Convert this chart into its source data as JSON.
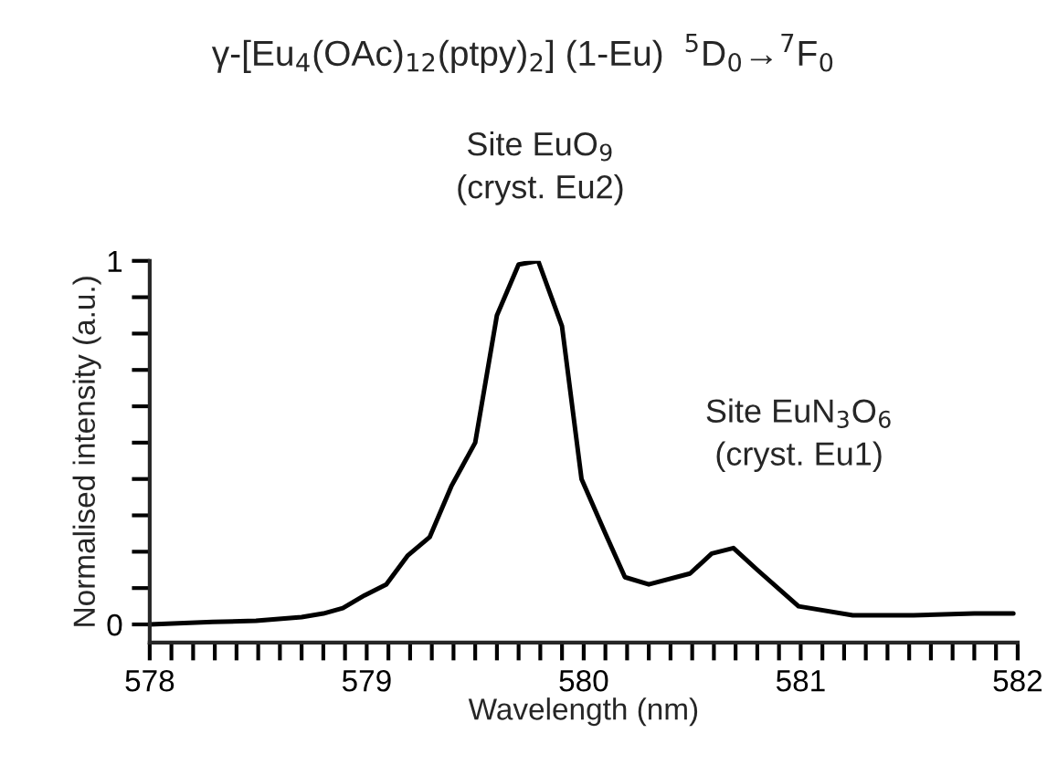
{
  "chart_data": {
    "type": "line",
    "title": "γ-[Eu$_{4}$(OAc)$_{12}$(ptpy)$_{2}$] (1-Eu)  $^{5}$D$_{0}$→$^{7}$F$_{0}$",
    "xlabel": "Wavelength (nm)",
    "ylabel": "Normalised intensity (a.u.)",
    "x": [
      578.0,
      578.29,
      578.49,
      578.7,
      578.8,
      578.89,
      578.99,
      579.09,
      579.19,
      579.29,
      579.39,
      579.5,
      579.6,
      579.7,
      579.79,
      579.9,
      579.99,
      580.1,
      580.19,
      580.3,
      580.49,
      580.59,
      580.69,
      580.8,
      580.99,
      581.24,
      581.52,
      581.8,
      581.98
    ],
    "series": [
      {
        "color": "#000000",
        "values": [
          0.0,
          0.007,
          0.01,
          0.02,
          0.03,
          0.045,
          0.08,
          0.11,
          0.19,
          0.24,
          0.38,
          0.5,
          0.85,
          0.99,
          1.0,
          0.82,
          0.4,
          0.25,
          0.13,
          0.11,
          0.14,
          0.195,
          0.21,
          0.15,
          0.05,
          0.025,
          0.025,
          0.03,
          0.03
        ]
      }
    ],
    "xlim": [
      578,
      582
    ],
    "xticks": [
      578,
      {
        "value": 578.1,
        "label": null
      },
      {
        "value": 578.2,
        "label": null
      },
      {
        "value": 578.3,
        "label": null
      },
      {
        "value": 578.4,
        "label": null
      },
      {
        "value": 578.5,
        "label": null
      },
      {
        "value": 578.6,
        "label": null
      },
      {
        "value": 578.7,
        "label": null
      },
      {
        "value": 578.8,
        "label": null
      },
      {
        "value": 578.9,
        "label": null
      },
      579,
      {
        "value": 579.1,
        "label": null
      },
      {
        "value": 579.2,
        "label": null
      },
      {
        "value": 579.3,
        "label": null
      },
      {
        "value": 579.4,
        "label": null
      },
      {
        "value": 579.5,
        "label": null
      },
      {
        "value": 579.6,
        "label": null
      },
      {
        "value": 579.7,
        "label": null
      },
      {
        "value": 579.8,
        "label": null
      },
      {
        "value": 579.9,
        "label": null
      },
      580,
      {
        "value": 580.1,
        "label": null
      },
      {
        "value": 580.2,
        "label": null
      },
      {
        "value": 580.3,
        "label": null
      },
      {
        "value": 580.4,
        "label": null
      },
      {
        "value": 580.5,
        "label": null
      },
      {
        "value": 580.6,
        "label": null
      },
      {
        "value": 580.7,
        "label": null
      },
      {
        "value": 580.8,
        "label": null
      },
      {
        "value": 580.9,
        "label": null
      },
      581,
      {
        "value": 581.1,
        "label": null
      },
      {
        "value": 581.2,
        "label": null
      },
      {
        "value": 581.3,
        "label": null
      },
      {
        "value": 581.4,
        "label": null
      },
      {
        "value": 581.5,
        "label": null
      },
      {
        "value": 581.6,
        "label": null
      },
      {
        "value": 581.7,
        "label": null
      },
      {
        "value": 581.8,
        "label": null
      },
      {
        "value": 581.9,
        "label": null
      },
      582
    ],
    "ylim": [
      -0.05,
      1
    ],
    "yticks": [
      0,
      {
        "value": 0.1,
        "label": null
      },
      {
        "value": 0.2,
        "label": null
      },
      {
        "value": 0.3,
        "label": null
      },
      {
        "value": 0.4,
        "label": null
      },
      {
        "value": 0.5,
        "label": null
      },
      {
        "value": 0.6,
        "label": null
      },
      {
        "value": 0.7,
        "label": null
      },
      {
        "value": 0.8,
        "label": null
      },
      {
        "value": 0.9,
        "label": null
      },
      1
    ],
    "annotations": [
      {
        "text": "Site EuO$_{9}$\n(cryst. Eu2)",
        "x": 579.8,
        "y": 1.0
      },
      {
        "text": "Site EuN$_{3}$O$_{6}$\n(cryst. Eu1)",
        "x": 580.7,
        "y": 0.21
      }
    ],
    "marker": "none",
    "line_style": "solid"
  }
}
